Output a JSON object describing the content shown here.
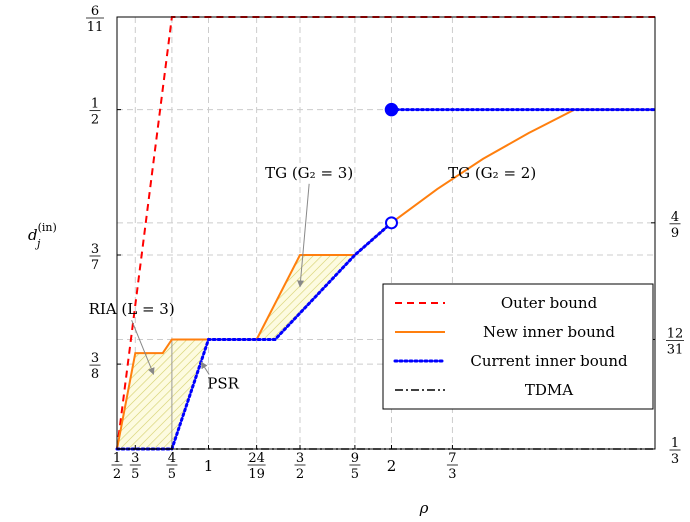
{
  "chart_data": {
    "type": "line",
    "xlabel": "ρ",
    "ylabel": "d_j^(in)",
    "ylabel_main": "d",
    "ylabel_sub": "j",
    "ylabel_sup": "(in)",
    "xlim": [
      0.5,
      3.44
    ],
    "ylim": [
      0.3333,
      0.5455
    ],
    "x_ticks": [
      {
        "value": 0.5,
        "num": "1",
        "den": "2"
      },
      {
        "value": 0.6,
        "num": "3",
        "den": "5"
      },
      {
        "value": 0.8,
        "num": "4",
        "den": "5"
      },
      {
        "value": 1.0,
        "label": "1"
      },
      {
        "value": 1.263,
        "num": "24",
        "den": "19"
      },
      {
        "value": 1.5,
        "num": "3",
        "den": "2"
      },
      {
        "value": 1.8,
        "num": "9",
        "den": "5"
      },
      {
        "value": 2.0,
        "label": "2"
      },
      {
        "value": 2.333,
        "num": "7",
        "den": "3"
      }
    ],
    "y_ticks_left": [
      {
        "value": 0.5455,
        "num": "6",
        "den": "11"
      },
      {
        "value": 0.5,
        "num": "1",
        "den": "2"
      },
      {
        "value": 0.4286,
        "num": "3",
        "den": "7"
      },
      {
        "value": 0.375,
        "num": "3",
        "den": "8"
      }
    ],
    "y_ticks_right": [
      {
        "value": 0.4444,
        "num": "4",
        "den": "9"
      },
      {
        "value": 0.3871,
        "num": "12",
        "den": "31"
      },
      {
        "value": 0.3333,
        "num": "1",
        "den": "3"
      }
    ],
    "series": [
      {
        "name": "Outer bound",
        "color": "#ff0000",
        "dash": "dashed",
        "points": [
          [
            0.5,
            0.3333
          ],
          [
            0.8,
            0.5455
          ],
          [
            3.44,
            0.5455
          ]
        ]
      },
      {
        "name": "New inner bound",
        "color": "#ff7f0e",
        "dash": "solid",
        "points": [
          [
            0.5,
            0.3333
          ],
          [
            0.6,
            0.3804
          ],
          [
            0.75,
            0.3804
          ],
          [
            0.8,
            0.3871
          ],
          [
            1.263,
            0.3871
          ],
          [
            1.5,
            0.4286
          ],
          [
            1.8,
            0.4286
          ],
          [
            2.0,
            0.4444
          ],
          [
            2.25,
            0.461
          ],
          [
            2.5,
            0.4758
          ],
          [
            2.75,
            0.4885
          ],
          [
            3.0,
            0.5
          ],
          [
            3.44,
            0.5
          ]
        ]
      },
      {
        "name": "Current inner bound",
        "color": "#0000ff",
        "dash": "dotted",
        "points": [
          [
            0.5,
            0.3333
          ],
          [
            0.8,
            0.3333
          ],
          [
            1.0,
            0.3871
          ],
          [
            1.263,
            0.3871
          ],
          [
            1.364,
            0.3871
          ],
          [
            1.8,
            0.4286
          ],
          [
            2.0,
            0.4444
          ]
        ]
      },
      {
        "name": "Current inner bound (upper branch)",
        "color": "#0000ff",
        "dash": "dotted",
        "points": [
          [
            2.0,
            0.5
          ],
          [
            3.44,
            0.5
          ]
        ]
      },
      {
        "name": "TDMA",
        "color": "#000000",
        "dash": "dashdot",
        "points": [
          [
            0.5,
            0.3333
          ],
          [
            3.44,
            0.3333
          ]
        ]
      }
    ],
    "markers": [
      {
        "x": 2.0,
        "y": 0.5,
        "style": "filled",
        "color": "#0000ff"
      },
      {
        "x": 2.0,
        "y": 0.4444,
        "style": "open",
        "color": "#0000ff"
      }
    ],
    "hatched_regions": [
      {
        "points": [
          [
            0.5,
            0.3333
          ],
          [
            0.6,
            0.3804
          ],
          [
            0.75,
            0.3804
          ],
          [
            0.8,
            0.3871
          ],
          [
            0.8,
            0.3333
          ]
        ]
      },
      {
        "points": [
          [
            0.8,
            0.3333
          ],
          [
            0.8,
            0.3871
          ],
          [
            1.0,
            0.3871
          ],
          [
            1.0,
            0.3871
          ]
        ]
      },
      {
        "points": [
          [
            1.263,
            0.3871
          ],
          [
            1.5,
            0.4286
          ],
          [
            1.8,
            0.4286
          ],
          [
            1.364,
            0.3871
          ]
        ]
      }
    ],
    "annotations": [
      {
        "id": "ria",
        "text": "RIA (L = 3)",
        "x": 0.58,
        "y": 0.3995,
        "target": [
          0.7,
          0.37
        ]
      },
      {
        "id": "psr",
        "text": "PSR",
        "x": 1.08,
        "y": 0.363,
        "target": [
          0.96,
          0.376
        ]
      },
      {
        "id": "tg3",
        "text": "TG (G₂ = 3)",
        "x": 1.55,
        "y": 0.4665,
        "target": [
          1.5,
          0.413
        ]
      },
      {
        "id": "tg2",
        "text": "TG (G₂ = 2)",
        "x": 2.55,
        "y": 0.4665
      }
    ],
    "legend": {
      "position": "lower-right",
      "entries": [
        "Outer bound",
        "New inner bound",
        "Current inner bound",
        "TDMA"
      ]
    },
    "grid": true
  }
}
